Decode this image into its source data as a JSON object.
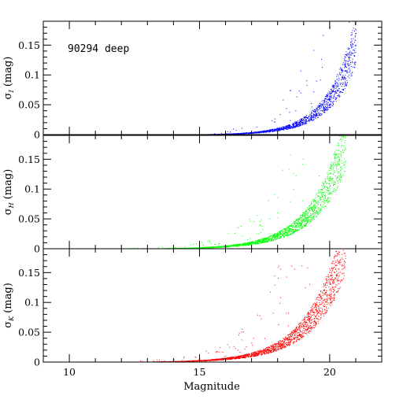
{
  "chart_data": {
    "type": "scatter",
    "xlabel": "Magnitude",
    "xlim": [
      9,
      22
    ],
    "x_ticks": [
      10,
      15,
      20
    ],
    "x_tick_labels": [
      "10",
      "15",
      "20"
    ],
    "annotation": "90294 deep",
    "panels": [
      {
        "id": "I",
        "ylabel_main": "σ",
        "ylabel_sub": "I",
        "ylabel_unit": "(mag)",
        "ylim": [
          0,
          0.19
        ],
        "y_ticks": [
          0,
          0.05,
          0.1,
          0.15
        ],
        "y_tick_labels": [
          "0",
          "0.05",
          "0.1",
          "0.15"
        ],
        "color": "#0000ff",
        "x_range": [
          14.5,
          21.0
        ],
        "curve": {
          "a": 0.0002,
          "m0": 14.0,
          "k": 0.95
        },
        "n_points": 1400,
        "outlier_fraction": 0.05,
        "trend_points": [
          [
            15.0,
            0.001
          ],
          [
            16.0,
            0.002
          ],
          [
            17.0,
            0.005
          ],
          [
            18.0,
            0.011
          ],
          [
            19.0,
            0.021
          ],
          [
            19.5,
            0.032
          ],
          [
            20.0,
            0.05
          ],
          [
            20.5,
            0.09
          ],
          [
            20.8,
            0.15
          ]
        ]
      },
      {
        "id": "H",
        "ylabel_main": "σ",
        "ylabel_sub": "H",
        "ylabel_unit": "(mag)",
        "ylim": [
          0,
          0.19
        ],
        "y_ticks": [
          0,
          0.05,
          0.1,
          0.15
        ],
        "y_tick_labels": [
          "0",
          "0.05",
          "0.1",
          "0.15"
        ],
        "color": "#00ff00",
        "x_range": [
          11.0,
          20.6
        ],
        "curve": {
          "a": 0.0004,
          "m0": 13.0,
          "k": 0.8
        },
        "n_points": 2200,
        "outlier_fraction": 0.04,
        "trend_points": [
          [
            12.0,
            0.0
          ],
          [
            14.0,
            0.001
          ],
          [
            16.0,
            0.005
          ],
          [
            17.0,
            0.011
          ],
          [
            18.0,
            0.02
          ],
          [
            18.5,
            0.03
          ],
          [
            19.0,
            0.05
          ],
          [
            19.5,
            0.08
          ],
          [
            20.0,
            0.13
          ],
          [
            20.3,
            0.18
          ]
        ]
      },
      {
        "id": "K",
        "ylabel_main": "σ",
        "ylabel_sub": "K",
        "ylabel_unit": "(mag)",
        "ylim": [
          0,
          0.19
        ],
        "y_ticks": [
          0,
          0.05,
          0.1,
          0.15
        ],
        "y_tick_labels": [
          "0",
          "0.05",
          "0.1",
          "0.15"
        ],
        "color": "#ff0000",
        "x_range": [
          11.0,
          20.6
        ],
        "curve": {
          "a": 0.0006,
          "m0": 13.0,
          "k": 0.76
        },
        "n_points": 2200,
        "outlier_fraction": 0.04,
        "trend_points": [
          [
            12.0,
            0.0
          ],
          [
            14.0,
            0.002
          ],
          [
            16.0,
            0.008
          ],
          [
            17.0,
            0.014
          ],
          [
            18.0,
            0.025
          ],
          [
            18.5,
            0.035
          ],
          [
            19.0,
            0.05
          ],
          [
            19.5,
            0.085
          ],
          [
            20.0,
            0.13
          ],
          [
            20.3,
            0.18
          ]
        ]
      }
    ]
  }
}
